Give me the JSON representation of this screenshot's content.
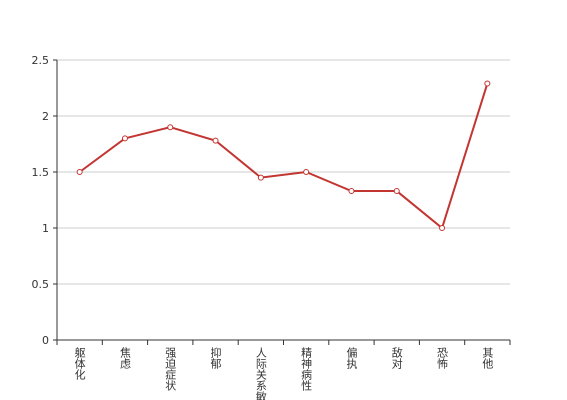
{
  "chart_data": {
    "type": "line",
    "categories": [
      "躯体化",
      "焦虑",
      "强迫症状",
      "抑郁",
      "人际关系敏感",
      "精神病性",
      "偏执",
      "敌对",
      "恐怖",
      "其他"
    ],
    "series": [
      {
        "color": "#c23531",
        "values": [
          1.5,
          1.8,
          1.9,
          1.78,
          1.45,
          1.5,
          1.33,
          1.33,
          1.0,
          2.29
        ]
      }
    ],
    "ylim": [
      0,
      2.5
    ],
    "yticks": [
      0,
      0.5,
      1,
      1.5,
      2,
      2.5
    ],
    "grid": true
  }
}
